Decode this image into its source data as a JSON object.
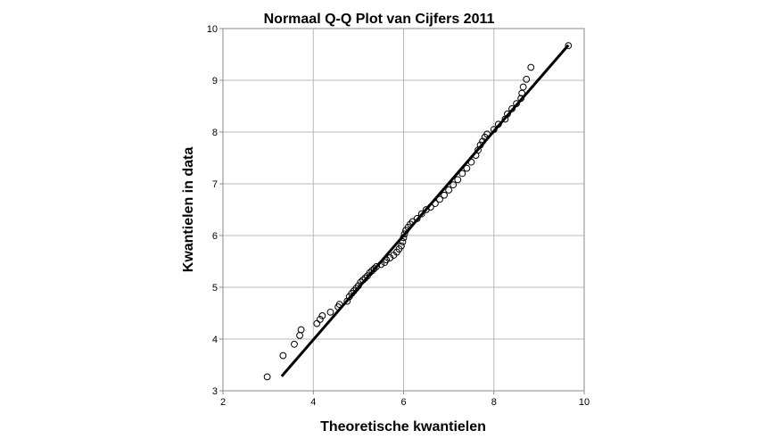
{
  "chart_data": {
    "type": "scatter",
    "title": "Normaal Q-Q Plot van Cijfers 2011",
    "xlabel": "Theoretische kwantielen",
    "ylabel": "Kwantielen in data",
    "xlim": [
      2,
      10
    ],
    "ylim": [
      3,
      10
    ],
    "xticks": [
      "2",
      "4",
      "6",
      "8",
      "10"
    ],
    "yticks": [
      "3",
      "4",
      "5",
      "6",
      "7",
      "8",
      "9",
      "10"
    ],
    "grid": true,
    "reference_line": {
      "x": [
        3.3,
        9.65
      ],
      "y": [
        3.28,
        9.68
      ]
    },
    "points": [
      [
        2.98,
        3.27
      ],
      [
        3.33,
        3.68
      ],
      [
        3.58,
        3.9
      ],
      [
        3.7,
        4.07
      ],
      [
        3.73,
        4.18
      ],
      [
        4.08,
        4.3
      ],
      [
        4.15,
        4.38
      ],
      [
        4.2,
        4.45
      ],
      [
        4.38,
        4.52
      ],
      [
        4.55,
        4.62
      ],
      [
        4.58,
        4.67
      ],
      [
        4.75,
        4.73
      ],
      [
        4.8,
        4.82
      ],
      [
        4.85,
        4.88
      ],
      [
        4.9,
        4.93
      ],
      [
        4.95,
        4.98
      ],
      [
        5.0,
        5.03
      ],
      [
        5.05,
        5.1
      ],
      [
        5.1,
        5.14
      ],
      [
        5.15,
        5.18
      ],
      [
        5.2,
        5.22
      ],
      [
        5.25,
        5.28
      ],
      [
        5.3,
        5.32
      ],
      [
        5.35,
        5.36
      ],
      [
        5.4,
        5.4
      ],
      [
        5.5,
        5.44
      ],
      [
        5.58,
        5.48
      ],
      [
        5.62,
        5.53
      ],
      [
        5.7,
        5.57
      ],
      [
        5.78,
        5.62
      ],
      [
        5.85,
        5.68
      ],
      [
        5.9,
        5.74
      ],
      [
        5.95,
        5.8
      ],
      [
        5.98,
        5.88
      ],
      [
        6.0,
        5.96
      ],
      [
        6.02,
        6.03
      ],
      [
        6.05,
        6.1
      ],
      [
        6.1,
        6.16
      ],
      [
        6.15,
        6.22
      ],
      [
        6.2,
        6.27
      ],
      [
        6.3,
        6.33
      ],
      [
        6.4,
        6.42
      ],
      [
        6.5,
        6.5
      ],
      [
        6.6,
        6.55
      ],
      [
        6.7,
        6.62
      ],
      [
        6.8,
        6.7
      ],
      [
        6.9,
        6.78
      ],
      [
        7.0,
        6.88
      ],
      [
        7.1,
        6.98
      ],
      [
        7.2,
        7.08
      ],
      [
        7.3,
        7.2
      ],
      [
        7.4,
        7.3
      ],
      [
        7.5,
        7.42
      ],
      [
        7.6,
        7.55
      ],
      [
        7.65,
        7.65
      ],
      [
        7.7,
        7.75
      ],
      [
        7.75,
        7.82
      ],
      [
        7.8,
        7.9
      ],
      [
        7.85,
        7.96
      ],
      [
        8.0,
        8.05
      ],
      [
        8.1,
        8.15
      ],
      [
        8.25,
        8.25
      ],
      [
        8.3,
        8.35
      ],
      [
        8.4,
        8.45
      ],
      [
        8.5,
        8.55
      ],
      [
        8.6,
        8.65
      ],
      [
        8.62,
        8.75
      ],
      [
        8.65,
        8.87
      ],
      [
        8.72,
        9.02
      ],
      [
        8.82,
        9.25
      ],
      [
        9.65,
        9.67
      ]
    ]
  }
}
